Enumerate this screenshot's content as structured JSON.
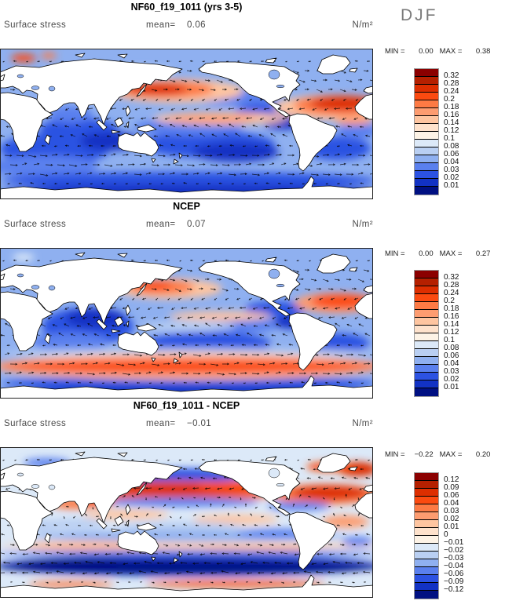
{
  "season_label": "DJF",
  "field_label": "Surface stress",
  "mean_label": "mean=",
  "units_label": "N/m²",
  "min_label": "MIN =",
  "max_label": "MAX =",
  "colorbar_colors": [
    "#8b0000",
    "#b52000",
    "#dd2e00",
    "#fb4a10",
    "#fd7a44",
    "#fd9c70",
    "#fec5a0",
    "#fee2cc",
    "#fdf3e6",
    "#dce9f8",
    "#b9cff2",
    "#8fb0f0",
    "#5a80ee",
    "#2c52e2",
    "#1232c4",
    "#001082"
  ],
  "panels": [
    {
      "title": "NF60_f19_1011 (yrs 3-5)",
      "mean": "0.06",
      "min": "0.00",
      "max": "0.38",
      "colorbar_labels": [
        "0.32",
        "0.28",
        "0.24",
        "0.2",
        "0.18",
        "0.16",
        "0.14",
        "0.12",
        "0.1",
        "0.08",
        "0.06",
        "0.04",
        "0.03",
        "0.02",
        "0.01"
      ]
    },
    {
      "title": "NCEP",
      "mean": "0.07",
      "min": "0.00",
      "max": "0.27",
      "colorbar_labels": [
        "0.32",
        "0.28",
        "0.24",
        "0.2",
        "0.18",
        "0.16",
        "0.14",
        "0.12",
        "0.1",
        "0.08",
        "0.06",
        "0.04",
        "0.03",
        "0.02",
        "0.01"
      ]
    },
    {
      "title": "NF60_f19_1011 - NCEP",
      "mean": "−0.01",
      "min": "−0.22",
      "max": "0.20",
      "colorbar_labels": [
        "0.12",
        "0.09",
        "0.06",
        "0.04",
        "0.03",
        "0.02",
        "0.01",
        "0",
        "−0.01",
        "−0.02",
        "−0.03",
        "−0.04",
        "−0.06",
        "−0.09",
        "−0.12"
      ]
    }
  ],
  "chart_data": {
    "type": "heatmap",
    "variable": "Surface stress",
    "season": "DJF",
    "units": "N/m²",
    "projection": "global cylindrical map, longitude 0–360E, latitude 90N–90S",
    "overlay": "surface wind stress vector arrows over ocean",
    "colorbar_colors_top_to_bottom": [
      "#8b0000",
      "#b52000",
      "#dd2e00",
      "#fb4a10",
      "#fd7a44",
      "#fd9c70",
      "#fec5a0",
      "#fee2cc",
      "#fdf3e6",
      "#dce9f8",
      "#b9cff2",
      "#8fb0f0",
      "#5a80ee",
      "#2c52e2",
      "#1232c4",
      "#001082"
    ],
    "panels": [
      {
        "title": "NF60_f19_1011 (yrs 3-5)",
        "mean": 0.06,
        "min": 0.0,
        "max": 0.38,
        "contour_levels": [
          0.01,
          0.02,
          0.03,
          0.04,
          0.06,
          0.08,
          0.1,
          0.12,
          0.14,
          0.16,
          0.18,
          0.2,
          0.24,
          0.28,
          0.32
        ],
        "notable_features": [
          "red maxima in Kuroshio extension and North Atlantic storm track",
          "blue low-stress subtropical gyres",
          "orange trade-wind bands in tropics"
        ]
      },
      {
        "title": "NCEP",
        "mean": 0.07,
        "min": 0.0,
        "max": 0.27,
        "contour_levels": [
          0.01,
          0.02,
          0.03,
          0.04,
          0.06,
          0.08,
          0.1,
          0.12,
          0.14,
          0.16,
          0.18,
          0.2,
          0.24,
          0.28,
          0.32
        ],
        "notable_features": [
          "strong red band along Southern Ocean westerlies",
          "moderate maxima in North Pacific and North Atlantic"
        ]
      },
      {
        "title": "NF60_f19_1011 - NCEP",
        "mean": -0.01,
        "min": -0.22,
        "max": 0.2,
        "contour_levels": [
          -0.12,
          -0.09,
          -0.06,
          -0.04,
          -0.03,
          -0.02,
          -0.01,
          0,
          0.01,
          0.02,
          0.03,
          0.04,
          0.06,
          0.09,
          0.12
        ],
        "notable_features": [
          "positive (red) bands in NH subtropics and North Atlantic",
          "strong negative (dark blue) band over Southern Ocean",
          "alternating zonal bands elsewhere"
        ]
      }
    ]
  }
}
